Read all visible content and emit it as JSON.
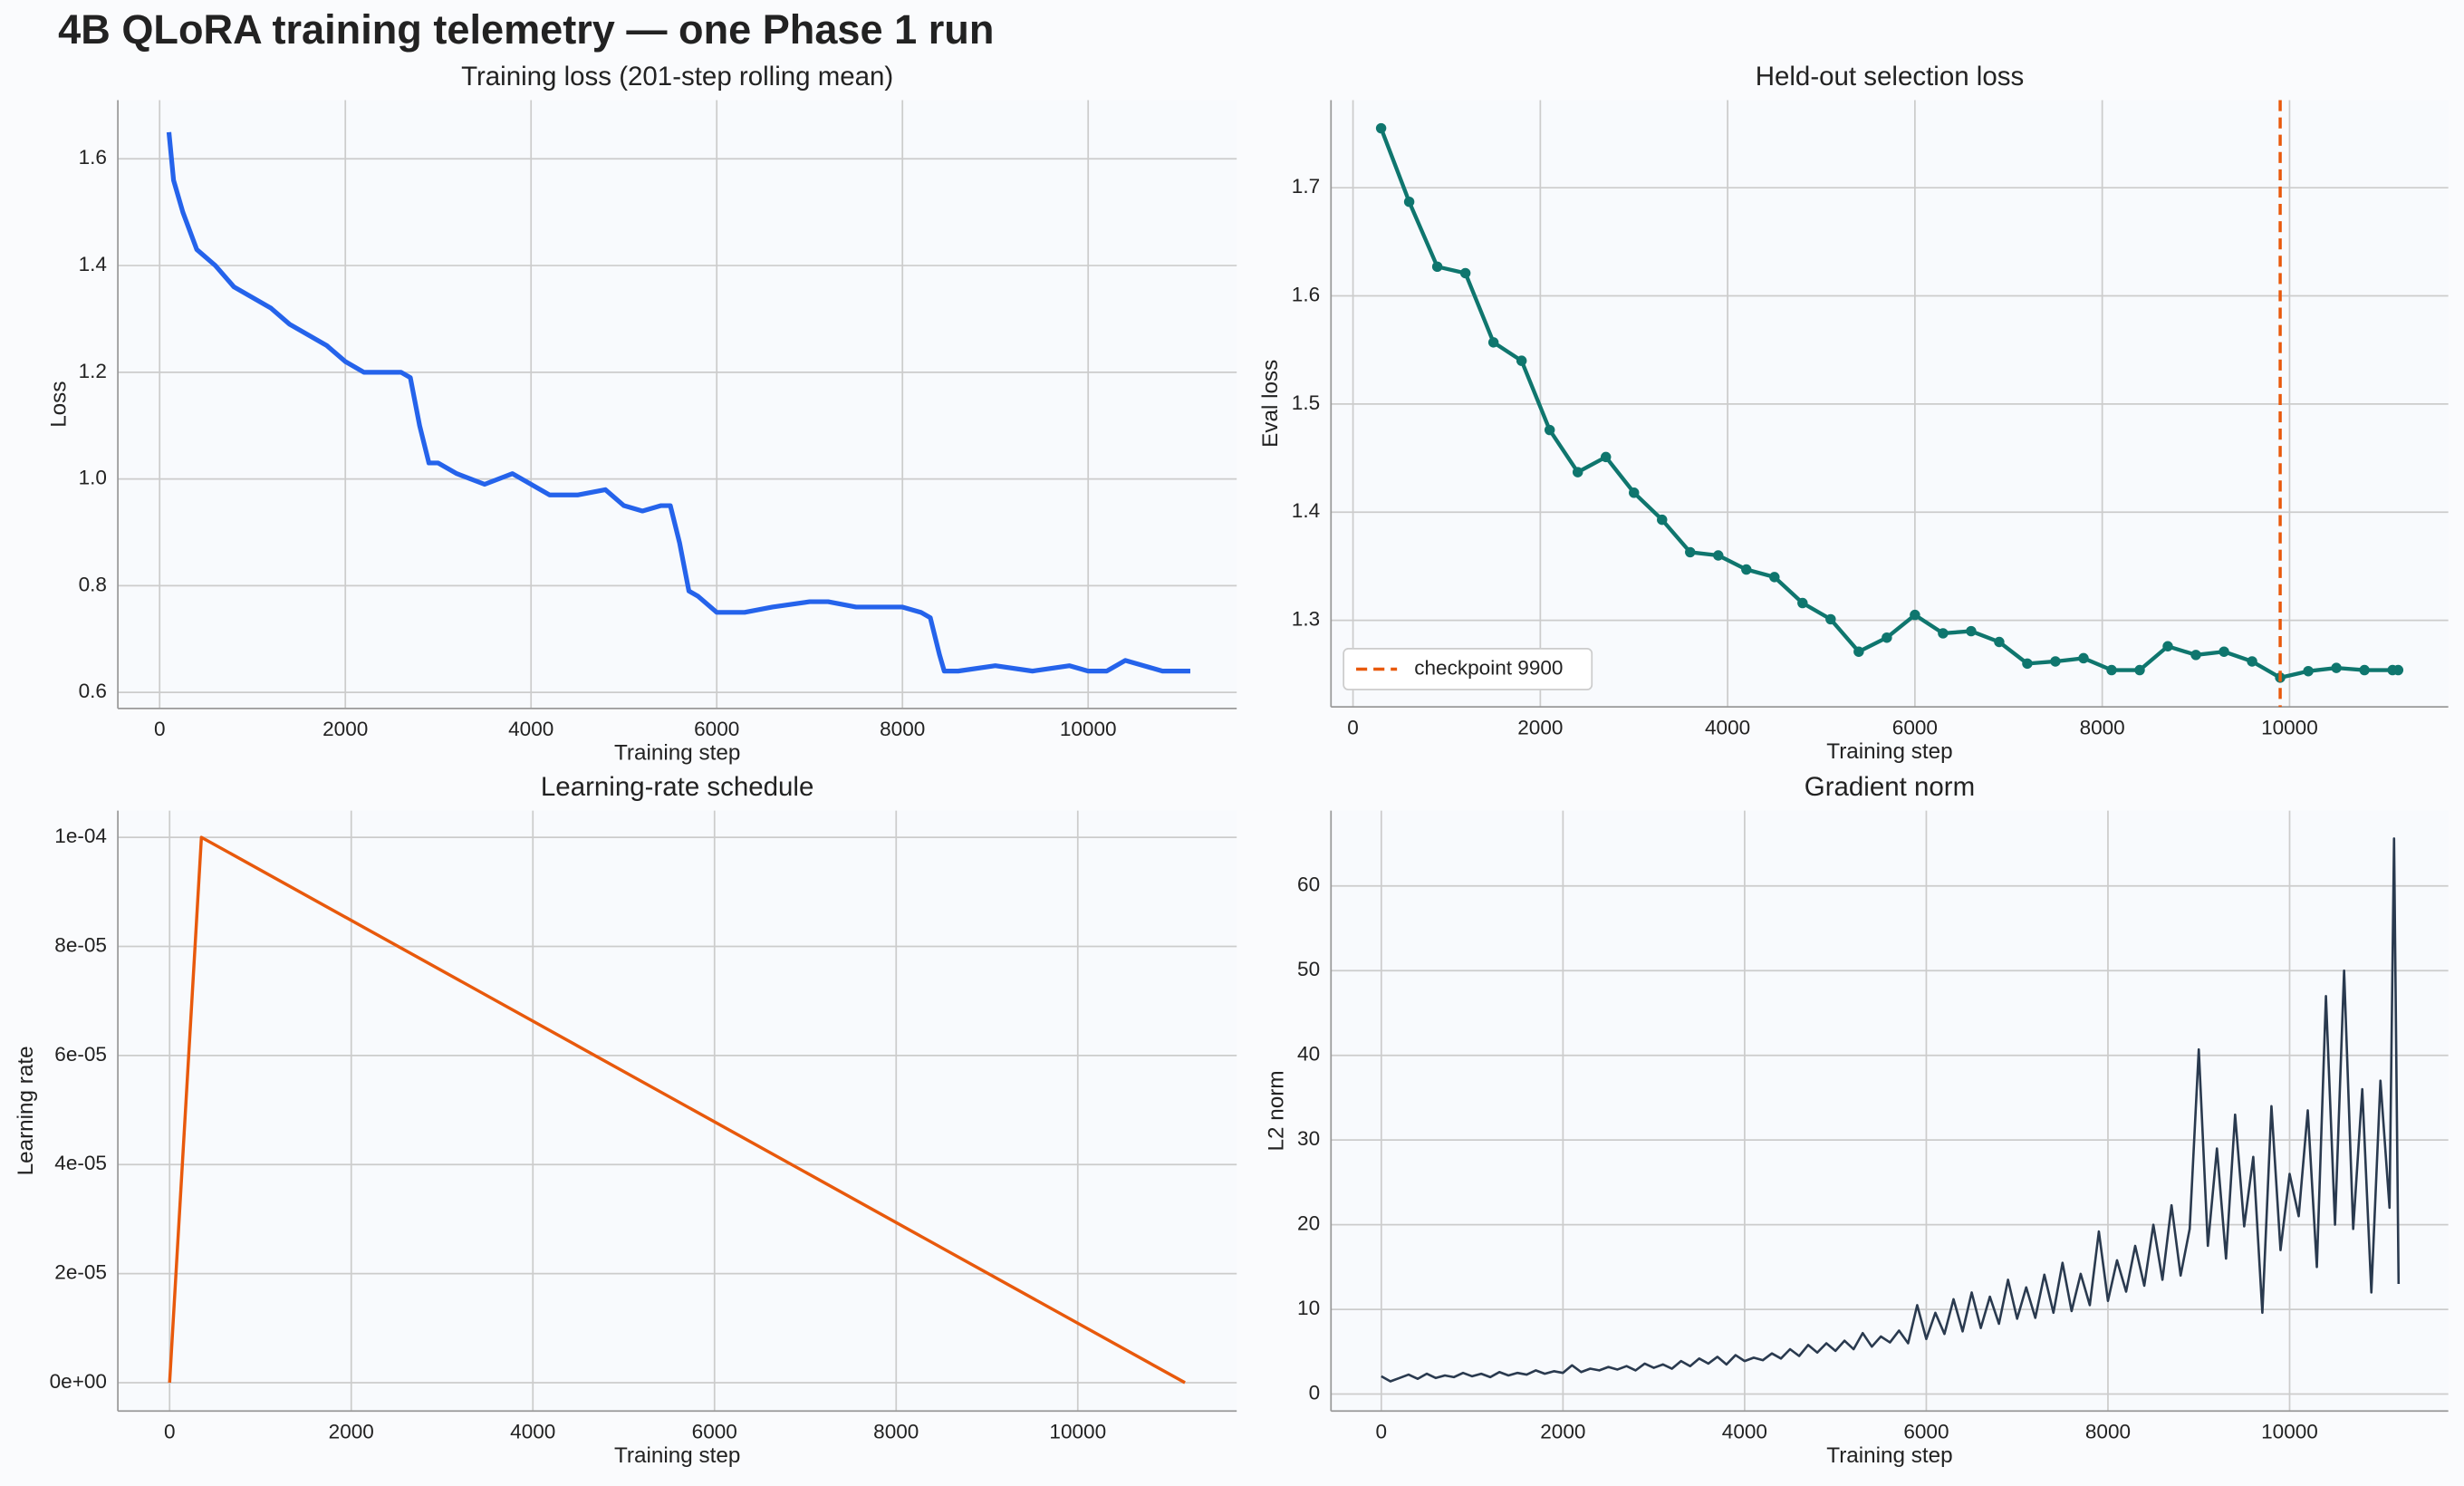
{
  "title": "4B QLoRA training telemetry — one Phase 1 run",
  "chart_data": [
    {
      "type": "line",
      "title": "Training loss (201-step rolling mean)",
      "x_label": "Training step",
      "y_label": "Loss",
      "x": [
        100,
        150,
        250,
        400,
        600,
        800,
        1000,
        1200,
        1400,
        1600,
        1800,
        2000,
        2200,
        2400,
        2600,
        2700,
        2800,
        2900,
        3000,
        3200,
        3500,
        3800,
        4000,
        4200,
        4500,
        4800,
        5000,
        5200,
        5400,
        5500,
        5600,
        5700,
        5800,
        6000,
        6300,
        6600,
        7000,
        7200,
        7500,
        7800,
        8000,
        8200,
        8300,
        8400,
        8450,
        8600,
        9000,
        9400,
        9800,
        10000,
        10200,
        10400,
        10600,
        10800,
        11000,
        11100
      ],
      "series": [
        {
          "color": "#2563eb",
          "values": [
            1.65,
            1.56,
            1.5,
            1.43,
            1.4,
            1.36,
            1.34,
            1.32,
            1.29,
            1.27,
            1.25,
            1.22,
            1.2,
            1.2,
            1.2,
            1.19,
            1.1,
            1.03,
            1.03,
            1.01,
            0.99,
            1.01,
            0.99,
            0.97,
            0.97,
            0.98,
            0.95,
            0.94,
            0.95,
            0.95,
            0.88,
            0.79,
            0.78,
            0.75,
            0.75,
            0.76,
            0.77,
            0.77,
            0.76,
            0.76,
            0.76,
            0.75,
            0.74,
            0.67,
            0.64,
            0.64,
            0.65,
            0.64,
            0.65,
            0.64,
            0.64,
            0.66,
            0.65,
            0.64,
            0.64,
            0.64
          ]
        }
      ],
      "xlim": [
        -450,
        11600
      ],
      "ylim": [
        0.57,
        1.71
      ],
      "xticks": [
        0,
        2000,
        4000,
        6000,
        8000,
        10000
      ],
      "yticks": [
        0.6,
        0.8,
        {
          "value": 1,
          "label": "1.0"
        },
        1.2,
        1.4,
        1.6
      ],
      "grid": true
    },
    {
      "type": "line",
      "title": "Held-out selection loss",
      "x_label": "Training step",
      "y_label": "Eval loss",
      "x": [
        300,
        600,
        900,
        1200,
        1500,
        1800,
        2100,
        2400,
        2700,
        3000,
        3300,
        3600,
        3900,
        4200,
        4500,
        4800,
        5100,
        5400,
        5700,
        6000,
        6300,
        6600,
        6900,
        7200,
        7500,
        7800,
        8100,
        8400,
        8700,
        9000,
        9300,
        9600,
        9900,
        10200,
        10500,
        10800,
        11100,
        11160
      ],
      "series": [
        {
          "color": "#0f766e",
          "values": [
            1.755,
            1.687,
            1.627,
            1.621,
            1.557,
            1.54,
            1.476,
            1.437,
            1.451,
            1.418,
            1.393,
            1.363,
            1.36,
            1.347,
            1.34,
            1.316,
            1.301,
            1.271,
            1.284,
            1.305,
            1.288,
            1.29,
            1.28,
            1.26,
            1.262,
            1.265,
            1.254,
            1.254,
            1.276,
            1.268,
            1.271,
            1.262,
            1.247,
            1.253,
            1.256,
            1.254,
            1.254,
            1.254
          ]
        }
      ],
      "markers": true,
      "vline": {
        "x": 9900,
        "label": "checkpoint 9900",
        "color": "#e8590c",
        "style": "dashed"
      },
      "legend": "lower left",
      "xlim": [
        -235,
        11695
      ],
      "ylim": [
        1.22,
        1.781
      ],
      "xticks": [
        0,
        2000,
        4000,
        6000,
        8000,
        10000
      ],
      "yticks": [
        1.3,
        1.4,
        1.5,
        1.6,
        1.7
      ],
      "grid": true
    },
    {
      "type": "line",
      "title": "Learning-rate schedule",
      "x_label": "Training step",
      "y_label": "Learning rate",
      "x": [
        0,
        350,
        11180
      ],
      "series": [
        {
          "color": "#e8590c",
          "values": [
            0,
            0.0001,
            0
          ]
        }
      ],
      "xlim": [
        -570,
        11750
      ],
      "ylim": [
        -5.2e-06,
        0.0001049
      ],
      "xticks": [
        0,
        2000,
        4000,
        6000,
        8000,
        10000
      ],
      "yticks": [
        {
          "value": 0,
          "label": "0e+00"
        },
        {
          "value": 2e-05,
          "label": "2e-05"
        },
        {
          "value": 4e-05,
          "label": "4e-05"
        },
        {
          "value": 6e-05,
          "label": "6e-05"
        },
        {
          "value": 8e-05,
          "label": "8e-05"
        },
        {
          "value": 0.0001,
          "label": "1e-04"
        }
      ],
      "grid": true
    },
    {
      "type": "line",
      "title": "Gradient norm",
      "x_label": "Training step",
      "y_label": "L2 norm",
      "x": [
        0,
        100,
        200,
        300,
        400,
        500,
        600,
        700,
        800,
        900,
        1000,
        1100,
        1200,
        1300,
        1400,
        1500,
        1600,
        1700,
        1800,
        1900,
        2000,
        2100,
        2200,
        2300,
        2400,
        2500,
        2600,
        2700,
        2800,
        2900,
        3000,
        3100,
        3200,
        3300,
        3400,
        3500,
        3600,
        3700,
        3800,
        3900,
        4000,
        4100,
        4200,
        4300,
        4400,
        4500,
        4600,
        4700,
        4800,
        4900,
        5000,
        5100,
        5200,
        5300,
        5400,
        5500,
        5600,
        5700,
        5800,
        5900,
        6000,
        6100,
        6200,
        6300,
        6400,
        6500,
        6600,
        6700,
        6800,
        6900,
        7000,
        7100,
        7200,
        7300,
        7400,
        7500,
        7600,
        7700,
        7800,
        7900,
        8000,
        8100,
        8200,
        8300,
        8400,
        8500,
        8600,
        8700,
        8800,
        8900,
        9000,
        9100,
        9200,
        9300,
        9400,
        9500,
        9600,
        9700,
        9800,
        9900,
        10000,
        10100,
        10200,
        10300,
        10400,
        10500,
        10600,
        10700,
        10800,
        10900,
        11000,
        11100,
        11150,
        11200
      ],
      "series": [
        {
          "color": "#2a3a4f",
          "values": [
            2.1,
            1.5,
            1.9,
            2.3,
            1.8,
            2.4,
            1.9,
            2.2,
            2.0,
            2.5,
            2.1,
            2.4,
            2.0,
            2.6,
            2.2,
            2.5,
            2.3,
            2.8,
            2.4,
            2.7,
            2.5,
            3.4,
            2.6,
            3.0,
            2.8,
            3.2,
            2.9,
            3.3,
            2.8,
            3.6,
            3.1,
            3.5,
            3.0,
            3.9,
            3.3,
            4.2,
            3.6,
            4.4,
            3.5,
            4.6,
            3.9,
            4.3,
            4.0,
            4.8,
            4.2,
            5.3,
            4.5,
            5.8,
            4.9,
            6.0,
            5.1,
            6.3,
            5.3,
            7.2,
            5.6,
            6.8,
            6.1,
            7.5,
            6.0,
            10.5,
            6.5,
            9.6,
            7.1,
            11.2,
            7.4,
            12.0,
            7.8,
            11.5,
            8.3,
            13.5,
            8.9,
            12.6,
            9.0,
            14.1,
            9.6,
            15.5,
            9.8,
            14.2,
            10.5,
            19.2,
            11.0,
            15.8,
            12.1,
            17.5,
            12.8,
            20.0,
            13.5,
            22.3,
            14.0,
            19.5,
            40.7,
            17.5,
            29.0,
            16.0,
            33.0,
            19.8,
            28.0,
            9.6,
            34.0,
            17.0,
            26.0,
            21.0,
            33.5,
            15.0,
            47.0,
            20.0,
            50.0,
            19.5,
            36.0,
            12.0,
            37.0,
            22.0,
            65.6,
            13.0
          ]
        }
      ],
      "xlim": [
        -554,
        11747
      ],
      "ylim": [
        -2,
        68.9
      ],
      "xticks": [
        0,
        2000,
        4000,
        6000,
        8000,
        10000
      ],
      "yticks": [
        0,
        10,
        20,
        30,
        40,
        50,
        60
      ],
      "grid": true
    }
  ]
}
